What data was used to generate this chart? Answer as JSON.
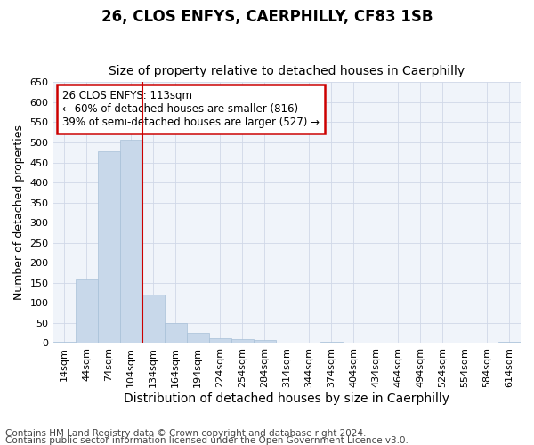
{
  "title": "26, CLOS ENFYS, CAERPHILLY, CF83 1SB",
  "subtitle": "Size of property relative to detached houses in Caerphilly",
  "xlabel": "Distribution of detached houses by size in Caerphilly",
  "ylabel": "Number of detached properties",
  "bar_categories": [
    "14sqm",
    "44sqm",
    "74sqm",
    "104sqm",
    "134sqm",
    "164sqm",
    "194sqm",
    "224sqm",
    "254sqm",
    "284sqm",
    "314sqm",
    "344sqm",
    "374sqm",
    "404sqm",
    "434sqm",
    "464sqm",
    "494sqm",
    "524sqm",
    "554sqm",
    "584sqm",
    "614sqm"
  ],
  "bar_values": [
    3,
    158,
    478,
    507,
    120,
    50,
    25,
    12,
    10,
    7,
    0,
    0,
    4,
    0,
    0,
    0,
    0,
    0,
    0,
    0,
    4
  ],
  "bar_color": "#c8d8ea",
  "bar_edge_color": "#a8c0d8",
  "annotation_text": "26 CLOS ENFYS: 113sqm\n← 60% of detached houses are smaller (816)\n39% of semi-detached houses are larger (527) →",
  "annotation_box_color": "#ffffff",
  "annotation_box_edge": "#cc0000",
  "ylim": [
    0,
    650
  ],
  "yticks": [
    0,
    50,
    100,
    150,
    200,
    250,
    300,
    350,
    400,
    450,
    500,
    550,
    600,
    650
  ],
  "grid_color": "#d0d8e8",
  "line_color": "#cc0000",
  "footer_line1": "Contains HM Land Registry data © Crown copyright and database right 2024.",
  "footer_line2": "Contains public sector information licensed under the Open Government Licence v3.0.",
  "background_color": "#ffffff",
  "plot_bg_color": "#f0f4fa",
  "title_fontsize": 12,
  "subtitle_fontsize": 10,
  "xlabel_fontsize": 10,
  "ylabel_fontsize": 9,
  "tick_fontsize": 8,
  "annotation_fontsize": 8.5,
  "footer_fontsize": 7.5
}
